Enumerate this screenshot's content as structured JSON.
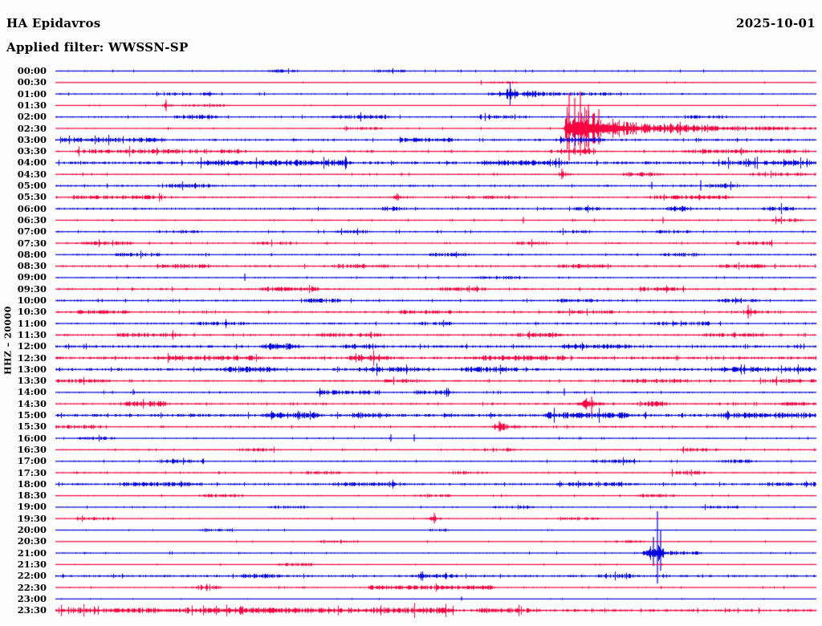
{
  "header": {
    "station": "HA Epidavros",
    "date": "2025-10-01",
    "filter": "Applied filter: WWSSN-SP"
  },
  "chart_data": {
    "type": "seismogram-helicorder",
    "title": "HA Epidavros",
    "date": "2025-10-01",
    "filter": "WWSSN-SP",
    "ylabel": "HHZ – 20000",
    "channel": "HHZ",
    "scale": 20000,
    "row_duration_minutes": 30,
    "time_start": "00:00",
    "time_end": "23:30",
    "legend_position": "none",
    "grid": false,
    "colors": {
      "trace_blue": "#0000dd",
      "trace_red": "#f8023f",
      "text": "#000000",
      "background": "#fdfdfd"
    },
    "rows": [
      {
        "t": "00:00",
        "c": "b",
        "base": 0.8,
        "bursts": [
          [
            340,
            365,
            1.6
          ],
          [
            470,
            500,
            1.1
          ]
        ]
      },
      {
        "t": "00:30",
        "c": "r",
        "base": 0.6,
        "bursts": [
          [
            600,
            640,
            0.9
          ]
        ]
      },
      {
        "t": "01:00",
        "c": "b",
        "base": 0.9,
        "bursts": [
          [
            200,
            260,
            1.1
          ],
          [
            690,
            770,
            1.2
          ]
        ],
        "events": [
          [
            640,
            6.5,
            14,
            4
          ],
          [
            660,
            6,
            6,
            14
          ]
        ]
      },
      {
        "t": "01:30",
        "c": "r",
        "base": 0.6,
        "bursts": [
          [
            230,
            280,
            1.0
          ]
        ],
        "events": [
          [
            207,
            4,
            3,
            4
          ]
        ],
        "spikes": [
          [
            207,
            7,
            7
          ]
        ]
      },
      {
        "t": "02:00",
        "c": "b",
        "base": 1.0,
        "bursts": [
          [
            225,
            265,
            2.0
          ],
          [
            420,
            480,
            1.5
          ],
          [
            600,
            655,
            1.2
          ],
          [
            860,
            900,
            1.1
          ]
        ]
      },
      {
        "t": "02:30",
        "c": "r",
        "base": 0.8,
        "bursts": [
          [
            430,
            470,
            1.2
          ]
        ],
        "events": [
          [
            706,
            26,
            2,
            16
          ],
          [
            728,
            20,
            10,
            26
          ],
          [
            762,
            9,
            14,
            60
          ],
          [
            850,
            3,
            30,
            120
          ]
        ],
        "spikes": [
          [
            709,
            44,
            40
          ],
          [
            716,
            38,
            30
          ],
          [
            723,
            46,
            34
          ],
          [
            733,
            30,
            28
          ],
          [
            746,
            24,
            20
          ]
        ]
      },
      {
        "t": "03:00",
        "c": "b",
        "base": 1.3,
        "bursts": [
          [
            69,
            200,
            1.8
          ],
          [
            500,
            560,
            1.4
          ],
          [
            700,
            745,
            2.6
          ]
        ]
      },
      {
        "t": "03:30",
        "c": "r",
        "base": 1.1,
        "bursts": [
          [
            95,
            300,
            1.7
          ],
          [
            700,
            737,
            2.8
          ],
          [
            860,
            985,
            1.5
          ]
        ]
      },
      {
        "t": "04:00",
        "c": "b",
        "base": 1.7,
        "bursts": [
          [
            250,
            430,
            2.2
          ],
          [
            600,
            700,
            1.8
          ],
          [
            900,
            1016,
            1.6
          ]
        ]
      },
      {
        "t": "04:30",
        "c": "r",
        "base": 0.9,
        "bursts": [
          [
            780,
            820,
            1.7
          ],
          [
            940,
            1000,
            1.3
          ]
        ],
        "events": [
          [
            700,
            4,
            2,
            5
          ]
        ],
        "spikes": [
          [
            700,
            7,
            6
          ]
        ]
      },
      {
        "t": "05:00",
        "c": "b",
        "base": 1.2,
        "bursts": [
          [
            210,
            260,
            1.5
          ],
          [
            885,
            915,
            2.0
          ]
        ],
        "spikes": [
          [
            812,
            5,
            4
          ],
          [
            873,
            7,
            6
          ]
        ]
      },
      {
        "t": "05:30",
        "c": "r",
        "base": 1.0,
        "bursts": [
          [
            90,
            200,
            1.5
          ],
          [
            560,
            640,
            1.3
          ],
          [
            810,
            905,
            1.6
          ]
        ],
        "events": [
          [
            495,
            3,
            3,
            4
          ]
        ],
        "spikes": [
          [
            495,
            5,
            4
          ]
        ]
      },
      {
        "t": "06:00",
        "c": "b",
        "base": 1.2,
        "bursts": [
          [
            480,
            500,
            1.7
          ],
          [
            720,
            745,
            1.5
          ],
          [
            837,
            856,
            3.0
          ],
          [
            955,
            985,
            1.6
          ]
        ]
      },
      {
        "t": "06:30",
        "c": "r",
        "base": 0.9,
        "bursts": [
          [
            968,
            992,
            1.9
          ]
        ],
        "spikes": [
          [
            652,
            4,
            4
          ],
          [
            826,
            4,
            4
          ]
        ]
      },
      {
        "t": "07:00",
        "c": "b",
        "base": 0.9,
        "bursts": [
          [
            200,
            245,
            1.3
          ],
          [
            420,
            455,
            1.2
          ],
          [
            700,
            730,
            1.4
          ],
          [
            820,
            855,
            1.3
          ]
        ]
      },
      {
        "t": "07:30",
        "c": "r",
        "base": 0.9,
        "bursts": [
          [
            100,
            160,
            1.4
          ],
          [
            320,
            360,
            1.2
          ],
          [
            640,
            680,
            1.3
          ],
          [
            920,
            960,
            1.4
          ]
        ]
      },
      {
        "t": "08:00",
        "c": "b",
        "base": 1.0,
        "bursts": [
          [
            150,
            195,
            1.5
          ],
          [
            540,
            580,
            1.3
          ],
          [
            830,
            870,
            1.4
          ]
        ]
      },
      {
        "t": "08:30",
        "c": "r",
        "base": 1.2,
        "bursts": [
          [
            200,
            260,
            1.6
          ],
          [
            420,
            480,
            1.5
          ],
          [
            700,
            760,
            1.6
          ],
          [
            900,
            950,
            1.5
          ]
        ]
      },
      {
        "t": "09:00",
        "c": "b",
        "base": 0.9,
        "bursts": [
          [
            600,
            650,
            1.3
          ]
        ],
        "spikes": [
          [
            305,
            5,
            4
          ]
        ]
      },
      {
        "t": "09:30",
        "c": "r",
        "base": 1.2,
        "bursts": [
          [
            330,
            400,
            1.8
          ],
          [
            550,
            600,
            1.5
          ],
          [
            800,
            850,
            1.6
          ]
        ]
      },
      {
        "t": "10:00",
        "c": "b",
        "base": 1.1,
        "bursts": [
          [
            380,
            420,
            1.5
          ],
          [
            700,
            740,
            1.4
          ],
          [
            900,
            940,
            1.3
          ]
        ]
      },
      {
        "t": "10:30",
        "c": "r",
        "base": 1.2,
        "bursts": [
          [
            100,
            160,
            1.5
          ],
          [
            500,
            560,
            1.4
          ],
          [
            700,
            760,
            1.5
          ]
        ],
        "events": [
          [
            932,
            6,
            2,
            12
          ]
        ],
        "spikes": [
          [
            932,
            9,
            8
          ]
        ]
      },
      {
        "t": "11:00",
        "c": "b",
        "base": 1.1,
        "bursts": [
          [
            240,
            300,
            1.5
          ],
          [
            520,
            560,
            1.3
          ],
          [
            820,
            880,
            1.6
          ]
        ]
      },
      {
        "t": "11:30",
        "c": "r",
        "base": 1.2,
        "bursts": [
          [
            150,
            220,
            1.5
          ],
          [
            400,
            470,
            1.4
          ],
          [
            640,
            700,
            1.5
          ],
          [
            880,
            950,
            1.5
          ]
        ]
      },
      {
        "t": "12:00",
        "c": "b",
        "base": 1.5,
        "bursts": [
          [
            330,
            370,
            2.6
          ],
          [
            430,
            465,
            1.8
          ],
          [
            700,
            780,
            1.6
          ]
        ]
      },
      {
        "t": "12:30",
        "c": "r",
        "base": 1.6,
        "bursts": [
          [
            200,
            320,
            1.8
          ],
          [
            440,
            478,
            2.6
          ],
          [
            600,
            700,
            1.8
          ]
        ]
      },
      {
        "t": "13:00",
        "c": "b",
        "base": 1.6,
        "bursts": [
          [
            280,
            340,
            2.0
          ],
          [
            450,
            520,
            1.8
          ],
          [
            580,
            640,
            2.0
          ],
          [
            900,
            1010,
            1.8
          ]
        ]
      },
      {
        "t": "13:30",
        "c": "r",
        "base": 1.1,
        "bursts": [
          [
            69,
            130,
            1.7
          ],
          [
            480,
            520,
            1.4
          ],
          [
            780,
            850,
            1.5
          ],
          [
            950,
            1016,
            1.6
          ]
        ]
      },
      {
        "t": "14:00",
        "c": "b",
        "base": 1.0,
        "bursts": [
          [
            400,
            470,
            1.8
          ],
          [
            520,
            560,
            2.0
          ]
        ],
        "spikes": [
          [
            166,
            4,
            3
          ],
          [
            703,
            5,
            4
          ]
        ]
      },
      {
        "t": "14:30",
        "c": "r",
        "base": 1.1,
        "bursts": [
          [
            160,
            205,
            2.3
          ],
          [
            800,
            828,
            2.3
          ],
          [
            980,
            1016,
            1.5
          ]
        ],
        "events": [
          [
            733,
            7,
            6,
            10
          ]
        ],
        "spikes": [
          [
            737,
            9,
            13
          ]
        ]
      },
      {
        "t": "15:00",
        "c": "b",
        "base": 1.8,
        "bursts": [
          [
            330,
            390,
            2.2
          ],
          [
            440,
            480,
            2.0
          ],
          [
            680,
            780,
            2.2
          ],
          [
            900,
            1016,
            2.0
          ]
        ]
      },
      {
        "t": "15:30",
        "c": "r",
        "base": 1.0,
        "bursts": [
          [
            69,
            130,
            1.4
          ]
        ],
        "events": [
          [
            620,
            5,
            5,
            16
          ]
        ],
        "spikes": [
          [
            622,
            7,
            6
          ]
        ]
      },
      {
        "t": "16:00",
        "c": "b",
        "base": 0.8,
        "bursts": [
          [
            100,
            140,
            1.1
          ]
        ],
        "spikes": [
          [
            487,
            5,
            4
          ],
          [
            516,
            5,
            4
          ]
        ]
      },
      {
        "t": "16:30",
        "c": "r",
        "base": 0.9,
        "bursts": [
          [
            300,
            340,
            1.2
          ],
          [
            600,
            640,
            1.2
          ],
          [
            850,
            890,
            1.3
          ]
        ]
      },
      {
        "t": "17:00",
        "c": "b",
        "base": 0.9,
        "bursts": [
          [
            200,
            250,
            1.3
          ],
          [
            740,
            790,
            1.6
          ],
          [
            900,
            940,
            1.3
          ]
        ]
      },
      {
        "t": "17:30",
        "c": "r",
        "base": 0.9,
        "bursts": [
          [
            380,
            420,
            1.3
          ],
          [
            560,
            600,
            1.2
          ],
          [
            840,
            872,
            1.7
          ]
        ]
      },
      {
        "t": "18:00",
        "c": "b",
        "base": 1.2,
        "bursts": [
          [
            150,
            250,
            1.6
          ],
          [
            420,
            500,
            1.5
          ],
          [
            700,
            780,
            1.5
          ],
          [
            950,
            1016,
            1.4
          ]
        ]
      },
      {
        "t": "18:30",
        "c": "r",
        "base": 0.8,
        "bursts": [
          [
            250,
            300,
            1.2
          ],
          [
            520,
            560,
            1.1
          ],
          [
            800,
            840,
            1.2
          ]
        ]
      },
      {
        "t": "19:00",
        "c": "b",
        "base": 0.8,
        "bursts": [
          [
            340,
            380,
            1.2
          ],
          [
            620,
            660,
            1.2
          ],
          [
            880,
            920,
            1.2
          ]
        ]
      },
      {
        "t": "19:30",
        "c": "r",
        "base": 0.8,
        "bursts": [
          [
            100,
            140,
            1.2
          ],
          [
            700,
            740,
            1.2
          ]
        ],
        "events": [
          [
            541,
            4,
            4,
            6
          ]
        ],
        "spikes": [
          [
            541,
            7,
            6
          ]
        ]
      },
      {
        "t": "20:00",
        "c": "b",
        "base": 0.7,
        "bursts": [
          [
            250,
            285,
            1.0
          ],
          [
            540,
            552,
            1.8
          ]
        ]
      },
      {
        "t": "20:30",
        "c": "r",
        "base": 0.6,
        "bursts": [
          [
            400,
            440,
            1.0
          ],
          [
            760,
            800,
            1.0
          ]
        ]
      },
      {
        "t": "21:00",
        "c": "b",
        "base": 0.8,
        "bursts": [
          [
            840,
            870,
            1.2
          ]
        ],
        "events": [
          [
            818,
            12,
            9,
            9
          ]
        ],
        "spikes": [
          [
            814,
            20,
            16
          ],
          [
            819,
            52,
            38
          ],
          [
            823,
            28,
            22
          ]
        ]
      },
      {
        "t": "21:30",
        "c": "r",
        "base": 0.6,
        "bursts": [
          [
            350,
            385,
            1.4
          ]
        ]
      },
      {
        "t": "22:00",
        "c": "b",
        "base": 1.3,
        "bursts": [
          [
            300,
            345,
            1.6
          ],
          [
            520,
            565,
            1.6
          ],
          [
            750,
            790,
            1.5
          ]
        ]
      },
      {
        "t": "22:30",
        "c": "r",
        "base": 0.8,
        "bursts": [
          [
            245,
            268,
            1.9
          ],
          [
            460,
            558,
            2.1
          ],
          [
            565,
            612,
            1.9
          ]
        ]
      },
      {
        "t": "23:00",
        "c": "b",
        "base": 0.5,
        "spikes": [
          [
            575,
            3,
            2
          ]
        ]
      },
      {
        "t": "23:30",
        "c": "r",
        "base": 1.6,
        "bursts": [
          [
            69,
            300,
            2.1
          ],
          [
            300,
            560,
            2.3
          ],
          [
            600,
            665,
            1.7
          ]
        ]
      }
    ]
  }
}
